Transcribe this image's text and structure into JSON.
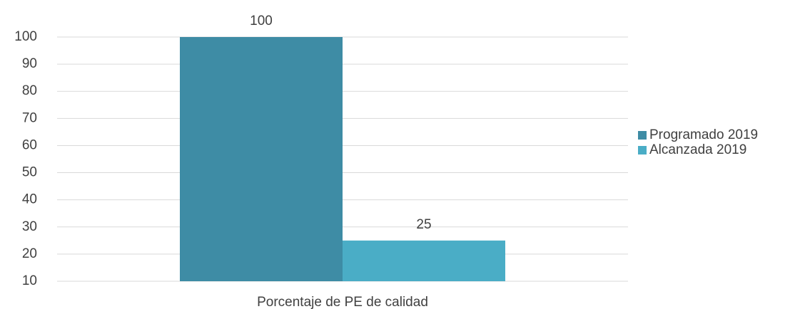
{
  "chart_data": {
    "type": "bar",
    "categories": [
      "Porcentaje de PE de calidad"
    ],
    "series": [
      {
        "name": "Programado 2019",
        "color": "#3e8ca5",
        "values": [
          100
        ]
      },
      {
        "name": "Alcanzada 2019",
        "color": "#4aadc6",
        "values": [
          25
        ]
      }
    ],
    "ylim": [
      10,
      100
    ],
    "yticks": [
      10,
      20,
      30,
      40,
      50,
      60,
      70,
      80,
      90,
      100
    ],
    "grid": true,
    "legend": "right"
  }
}
